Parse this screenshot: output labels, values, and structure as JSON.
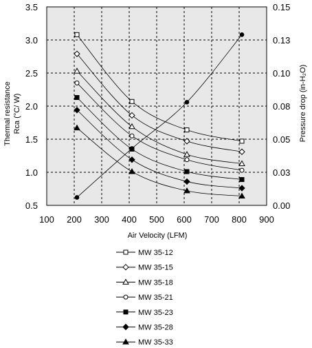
{
  "chart_data": {
    "type": "line",
    "xlabel": "Air Velocity (LFM)",
    "ylabel_left": [
      "Thermal resistance",
      "Rca (°C/ W)"
    ],
    "ylabel_right": "Pressure drop (in-H₂O)",
    "xlim": [
      100,
      900
    ],
    "ylim_left": [
      0.5,
      3.5
    ],
    "ylim_right": [
      0.0,
      0.15
    ],
    "x_ticks": [
      "100",
      "200",
      "300",
      "400",
      "500",
      "600",
      "700",
      "800",
      "900"
    ],
    "y_ticks_left": [
      "0.5",
      "1.0",
      "1.5",
      "2.0",
      "2.5",
      "3.0",
      "3.5"
    ],
    "y_ticks_right": [
      "0.00",
      "0.03",
      "0.05",
      "0.08",
      "0.10",
      "0.13",
      "0.15"
    ],
    "grid": true,
    "legend_position": "bottom",
    "x": [
      210,
      410,
      610,
      810
    ],
    "series": [
      {
        "name": "MW 35-12",
        "marker": "square-open",
        "axis": "left",
        "values": [
          3.08,
          2.07,
          1.64,
          1.47
        ]
      },
      {
        "name": "MW 35-15",
        "marker": "diamond-open",
        "axis": "left",
        "values": [
          2.79,
          1.86,
          1.47,
          1.31
        ]
      },
      {
        "name": "MW 35-18",
        "marker": "triangle-open",
        "axis": "left",
        "values": [
          2.53,
          1.69,
          1.27,
          1.13
        ]
      },
      {
        "name": "MW 35-21",
        "marker": "circle-open",
        "axis": "left",
        "values": [
          2.35,
          1.55,
          1.19,
          1.03
        ]
      },
      {
        "name": "MW 35-23",
        "marker": "square-filled",
        "axis": "left",
        "values": [
          2.13,
          1.35,
          1.01,
          0.89
        ]
      },
      {
        "name": "MW 35-28",
        "marker": "diamond-filled",
        "axis": "left",
        "values": [
          1.94,
          1.19,
          0.86,
          0.76
        ]
      },
      {
        "name": "MW 35-33",
        "marker": "triangle-filled",
        "axis": "left",
        "values": [
          1.67,
          1.01,
          0.72,
          0.64
        ]
      },
      {
        "name": "",
        "marker": "circle-filled",
        "axis": "right",
        "values": [
          0.006,
          0.043,
          0.078,
          0.129
        ]
      }
    ]
  },
  "colors": {
    "plot_background": "#e8e8e8",
    "ink": "#000000"
  }
}
